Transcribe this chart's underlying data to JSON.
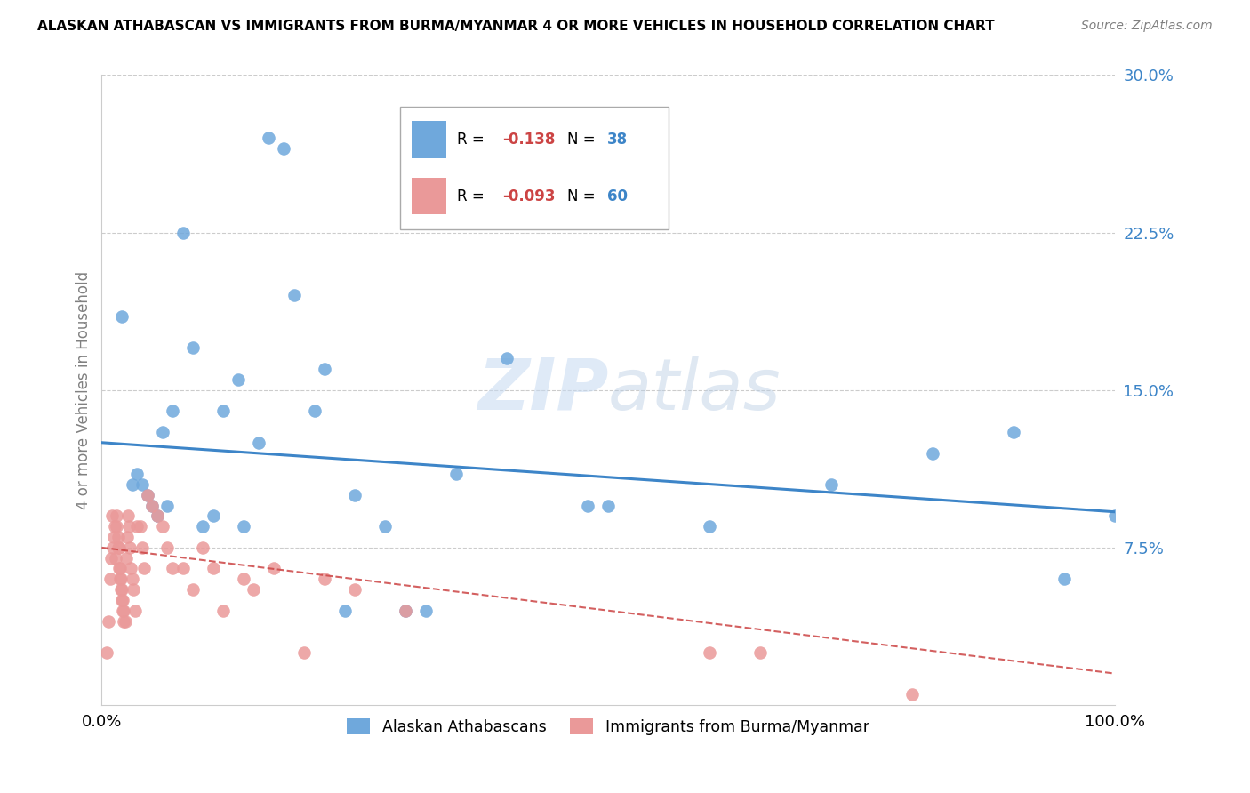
{
  "title": "ALASKAN ATHABASCAN VS IMMIGRANTS FROM BURMA/MYANMAR 4 OR MORE VEHICLES IN HOUSEHOLD CORRELATION CHART",
  "source": "Source: ZipAtlas.com",
  "ylabel": "4 or more Vehicles in Household",
  "yticks": [
    0.0,
    0.075,
    0.15,
    0.225,
    0.3
  ],
  "ytick_labels": [
    "",
    "7.5%",
    "15.0%",
    "22.5%",
    "30.0%"
  ],
  "xlim": [
    0.0,
    1.0
  ],
  "ylim": [
    0.0,
    0.3
  ],
  "color_blue": "#6fa8dc",
  "color_pink": "#ea9999",
  "color_blue_line": "#3d85c8",
  "color_pink_line": "#cc4444",
  "color_blue_text": "#3d85c8",
  "color_pink_text": "#cc4444",
  "watermark": "ZIPatlas",
  "blue_scatter_x": [
    0.02,
    0.03,
    0.04,
    0.045,
    0.05,
    0.055,
    0.065,
    0.07,
    0.08,
    0.09,
    0.1,
    0.11,
    0.12,
    0.135,
    0.155,
    0.165,
    0.18,
    0.19,
    0.21,
    0.22,
    0.24,
    0.25,
    0.28,
    0.3,
    0.32,
    0.35,
    0.4,
    0.5,
    0.6,
    0.72,
    0.82,
    0.9,
    0.95,
    1.0,
    0.035,
    0.06,
    0.14,
    0.48
  ],
  "blue_scatter_y": [
    0.185,
    0.105,
    0.105,
    0.1,
    0.095,
    0.09,
    0.095,
    0.14,
    0.225,
    0.17,
    0.085,
    0.09,
    0.14,
    0.155,
    0.125,
    0.27,
    0.265,
    0.195,
    0.14,
    0.16,
    0.045,
    0.1,
    0.085,
    0.045,
    0.045,
    0.11,
    0.165,
    0.095,
    0.085,
    0.105,
    0.12,
    0.13,
    0.06,
    0.09,
    0.11,
    0.13,
    0.085,
    0.095
  ],
  "pink_scatter_x": [
    0.005,
    0.007,
    0.008,
    0.009,
    0.01,
    0.011,
    0.012,
    0.013,
    0.014,
    0.015,
    0.015,
    0.016,
    0.016,
    0.017,
    0.017,
    0.018,
    0.018,
    0.019,
    0.019,
    0.02,
    0.02,
    0.021,
    0.021,
    0.022,
    0.022,
    0.023,
    0.024,
    0.025,
    0.026,
    0.027,
    0.028,
    0.029,
    0.03,
    0.031,
    0.033,
    0.035,
    0.038,
    0.04,
    0.042,
    0.045,
    0.05,
    0.055,
    0.06,
    0.065,
    0.07,
    0.08,
    0.09,
    0.1,
    0.11,
    0.12,
    0.14,
    0.15,
    0.17,
    0.2,
    0.22,
    0.25,
    0.3,
    0.6,
    0.65,
    0.8
  ],
  "pink_scatter_y": [
    0.025,
    0.04,
    0.06,
    0.07,
    0.09,
    0.075,
    0.08,
    0.085,
    0.07,
    0.09,
    0.085,
    0.08,
    0.075,
    0.075,
    0.065,
    0.065,
    0.06,
    0.06,
    0.055,
    0.055,
    0.05,
    0.05,
    0.045,
    0.045,
    0.04,
    0.04,
    0.07,
    0.08,
    0.09,
    0.085,
    0.075,
    0.065,
    0.06,
    0.055,
    0.045,
    0.085,
    0.085,
    0.075,
    0.065,
    0.1,
    0.095,
    0.09,
    0.085,
    0.075,
    0.065,
    0.065,
    0.055,
    0.075,
    0.065,
    0.045,
    0.06,
    0.055,
    0.065,
    0.025,
    0.06,
    0.055,
    0.045,
    0.025,
    0.025,
    0.005
  ],
  "blue_line_x": [
    0.0,
    1.0
  ],
  "blue_line_y": [
    0.125,
    0.092
  ],
  "pink_line_x": [
    0.0,
    1.0
  ],
  "pink_line_y": [
    0.075,
    0.015
  ]
}
